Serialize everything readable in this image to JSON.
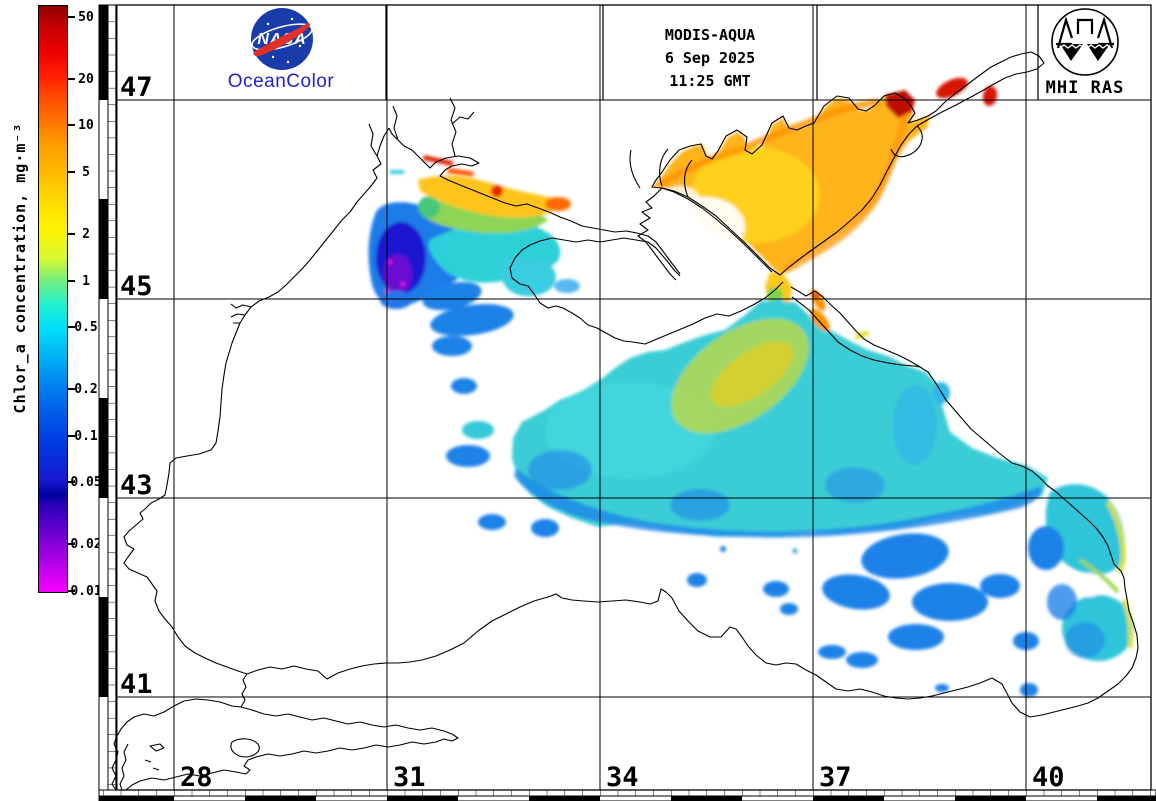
{
  "branding": {
    "nasa_logo_text": "NASA",
    "oceancolor_label": "OceanColor",
    "oceancolor_color": "#2222cc",
    "nasa_blue": "#1a3cab",
    "nasa_red": "#e03028"
  },
  "acquisition": {
    "sensor": "MODIS-AQUA",
    "date": "6 Sep 2025",
    "time": "11:25 GMT"
  },
  "institute": {
    "label": "MHI RAS"
  },
  "colorbar": {
    "title": "Chlor_a concentration, mg·m⁻³",
    "tick_values": [
      50,
      20,
      10,
      5,
      2,
      1,
      0.5,
      0.2,
      0.1,
      0.05,
      0.02,
      0.01
    ],
    "tick_labels": [
      "50",
      "20",
      "10",
      "5",
      "2",
      "1",
      "0.5",
      "0.2",
      "0.1",
      "0.05",
      "0.02",
      "0.01"
    ],
    "gradient_stops": [
      [
        "0%",
        "#900000"
      ],
      [
        "3%",
        "#c00000"
      ],
      [
        "8%",
        "#f00000"
      ],
      [
        "12%",
        "#ff2000"
      ],
      [
        "16%",
        "#ff5000"
      ],
      [
        "20%",
        "#ff7800"
      ],
      [
        "24%",
        "#ffa000"
      ],
      [
        "28%",
        "#ffb800"
      ],
      [
        "33%",
        "#ffd800"
      ],
      [
        "38%",
        "#fff400"
      ],
      [
        "43%",
        "#d8f830"
      ],
      [
        "47%",
        "#70f080"
      ],
      [
        "51%",
        "#20f0d0"
      ],
      [
        "55%",
        "#00e0f8"
      ],
      [
        "60%",
        "#00b0f4"
      ],
      [
        "65%",
        "#0080f0"
      ],
      [
        "70%",
        "#0058e8"
      ],
      [
        "75%",
        "#0038e0"
      ],
      [
        "81%",
        "#1818d0"
      ],
      [
        "83.5%",
        "#0000a0"
      ],
      [
        "85%",
        "#2800b8"
      ],
      [
        "88%",
        "#5000c8"
      ],
      [
        "92%",
        "#8800d8"
      ],
      [
        "96%",
        "#c000e8"
      ],
      [
        "100%",
        "#f800fc"
      ]
    ]
  },
  "axes": {
    "lat_ticks": [
      47,
      45,
      43,
      41
    ],
    "lon_ticks": [
      28,
      31,
      34,
      37,
      40
    ]
  },
  "map_colors": {
    "azov_orange": "#ffb41e",
    "azov_yellow": "#ffd31e",
    "bloom_red": "#d81400",
    "bloom_dark_red": "#c01005",
    "basin_cyan": "#3bcdd6",
    "streak_yellow_green": "#b6d84e",
    "patch_blue": "#1f82e8",
    "shelf_navy": "#1a10cf",
    "shelf_purple": "#7a10d4",
    "coast_fringe_green": "#cede3c"
  }
}
